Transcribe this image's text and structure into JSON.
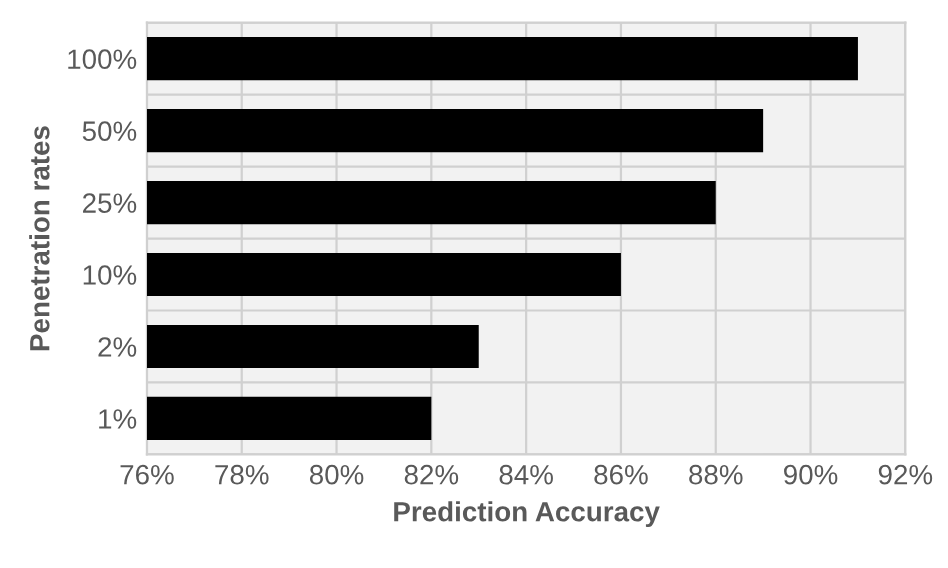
{
  "chart_data": {
    "type": "bar",
    "orientation": "horizontal",
    "xlabel": "Prediction Accuracy",
    "ylabel": "Penetration rates",
    "categories": [
      "100%",
      "50%",
      "25%",
      "10%",
      "2%",
      "1%"
    ],
    "values": [
      91,
      89,
      88,
      86,
      83,
      82
    ],
    "color": "#000000",
    "xlim": [
      76,
      92
    ],
    "xticks": [
      {
        "value": 76,
        "label": "76%"
      },
      {
        "value": 78,
        "label": "78%"
      },
      {
        "value": 80,
        "label": "80%"
      },
      {
        "value": 82,
        "label": "82%"
      },
      {
        "value": 84,
        "label": "84%"
      },
      {
        "value": 86,
        "label": "86%"
      },
      {
        "value": 88,
        "label": "88%"
      },
      {
        "value": 90,
        "label": "90%"
      },
      {
        "value": 92,
        "label": "92%"
      }
    ],
    "grid": "x"
  }
}
